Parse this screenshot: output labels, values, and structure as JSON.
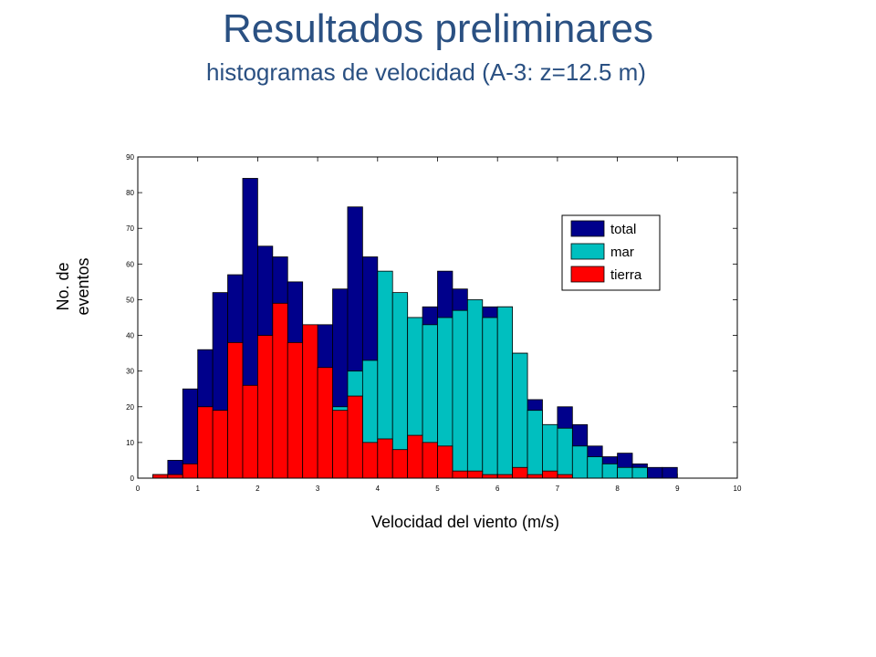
{
  "title": "Resultados preliminares",
  "subtitle": "histogramas de velocidad (A-3: z=12.5 m)",
  "chart_data": {
    "type": "bar",
    "xlabel": "Velocidad del viento (m/s)",
    "ylabel": "No. de eventos",
    "xlim": [
      0,
      10
    ],
    "ylim": [
      0,
      90
    ],
    "xticks": [
      "0",
      "1",
      "2",
      "3",
      "4",
      "5",
      "6",
      "7",
      "8",
      "9",
      "10"
    ],
    "yticks": [
      "0",
      "10",
      "20",
      "30",
      "40",
      "50",
      "60",
      "70",
      "80",
      "90"
    ],
    "bin_width": 0.25,
    "legend_position": "top-right",
    "series": [
      {
        "name": "total",
        "color": "#00008B",
        "x": [
          0.375,
          0.625,
          0.875,
          1.125,
          1.375,
          1.625,
          1.875,
          2.125,
          2.375,
          2.625,
          2.875,
          3.125,
          3.375,
          3.625,
          3.875,
          4.125,
          4.375,
          4.625,
          4.875,
          5.125,
          5.375,
          5.625,
          5.875,
          6.125,
          6.375,
          6.625,
          6.875,
          7.125,
          7.375,
          7.625,
          7.875,
          8.125,
          8.375,
          8.625,
          8.875,
          9.125,
          9.375
        ],
        "values": [
          1,
          5,
          25,
          36,
          52,
          57,
          84,
          65,
          62,
          55,
          39,
          43,
          53,
          76,
          62,
          48,
          51,
          45,
          48,
          58,
          53,
          47,
          48,
          48,
          35,
          22,
          15,
          20,
          15,
          9,
          6,
          7,
          4,
          3,
          3,
          0,
          0
        ]
      },
      {
        "name": "mar",
        "color": "#00BFBF",
        "x": [
          2.875,
          3.125,
          3.375,
          3.625,
          3.875,
          4.125,
          4.375,
          4.625,
          4.875,
          5.125,
          5.375,
          5.625,
          5.875,
          6.125,
          6.375,
          6.625,
          6.875,
          7.125,
          7.375,
          7.625,
          7.875,
          8.125,
          8.375,
          8.625,
          8.875,
          9.125,
          9.375
        ],
        "values": [
          22,
          24,
          20,
          30,
          33,
          58,
          52,
          45,
          43,
          45,
          47,
          50,
          45,
          48,
          35,
          19,
          15,
          14,
          9,
          6,
          4,
          3,
          3,
          0,
          0,
          0,
          0
        ]
      },
      {
        "name": "tierra",
        "color": "#FF0000",
        "x": [
          0.375,
          0.625,
          0.875,
          1.125,
          1.375,
          1.625,
          1.875,
          2.125,
          2.375,
          2.625,
          2.875,
          3.125,
          3.375,
          3.625,
          3.875,
          4.125,
          4.375,
          4.625,
          4.875,
          5.125,
          5.375,
          5.625,
          5.875,
          6.125,
          6.375,
          6.625,
          6.875,
          7.125
        ],
        "values": [
          1,
          1,
          4,
          20,
          19,
          38,
          26,
          40,
          49,
          38,
          43,
          31,
          19,
          23,
          10,
          11,
          8,
          12,
          10,
          9,
          2,
          2,
          1,
          1,
          3,
          1,
          2,
          1
        ]
      }
    ]
  }
}
